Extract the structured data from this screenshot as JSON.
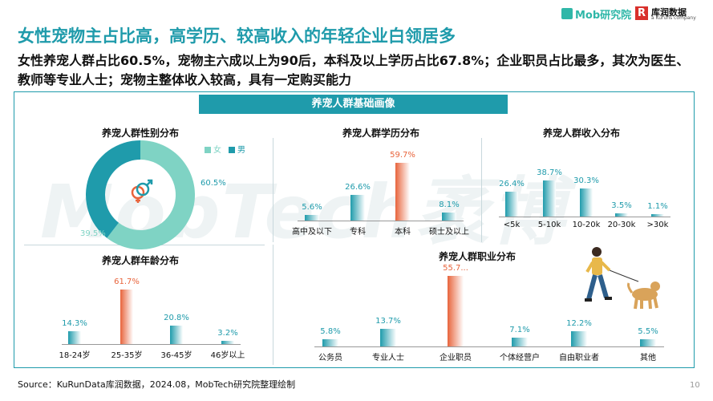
{
  "header": {
    "title": "女性宠物主占比高，高学历、较高收入的年轻企业白领居多",
    "subtitle": "女性养宠人群占比60.5%，宠物主六成以上为90后，本科及以上学历占比67.8%；企业职员占比最多，其次为医生、教师等专业人士；宠物主整体收入较高，具有一定购买能力",
    "logo_mob": "Mob研究院",
    "logo_r": "R",
    "logo_kurun_cn": "库润数据",
    "logo_kurun_en": "a Kuruns company"
  },
  "banner": "养宠人群基础画像",
  "watermark": "MobTech袤博",
  "source": "Source：KuRunData库润数据，2024.08，MobTech研究院整理绘制",
  "page_number": "10",
  "colors": {
    "teal": "#1f9bab",
    "orange": "#e8643c",
    "donut_female": "#7fd3c4",
    "donut_male": "#1f9bab"
  },
  "icons": {
    "gender": "gender-symbols-icon",
    "illustration": "person-walking-dog-icon"
  },
  "chart_data": [
    {
      "type": "pie",
      "title": "养宠人群性别分布",
      "legend": [
        "女",
        "男"
      ],
      "categories": [
        "女",
        "男"
      ],
      "values": [
        60.5,
        39.5
      ],
      "value_labels": [
        "60.5%",
        "39.5%"
      ]
    },
    {
      "type": "bar",
      "title": "养宠人群学历分布",
      "categories": [
        "高中及以下",
        "专科",
        "本科",
        "硕士及以上"
      ],
      "values": [
        5.6,
        26.6,
        59.7,
        8.1
      ],
      "value_labels": [
        "5.6%",
        "26.6%",
        "59.7%",
        "8.1%"
      ],
      "highlight_index": 2
    },
    {
      "type": "bar",
      "title": "养宠人群收入分布",
      "categories": [
        "<5k",
        "5-10k",
        "10-20k",
        "20-30k",
        ">30k"
      ],
      "values": [
        26.4,
        38.7,
        30.3,
        3.5,
        1.1
      ],
      "value_labels": [
        "26.4%",
        "38.7%",
        "30.3%",
        "3.5%",
        "1.1%"
      ],
      "highlight_index": -1
    },
    {
      "type": "bar",
      "title": "养宠人群年龄分布",
      "categories": [
        "18-24岁",
        "25-35岁",
        "36-45岁",
        "46岁以上"
      ],
      "values": [
        14.3,
        61.7,
        20.8,
        3.2
      ],
      "value_labels": [
        "14.3%",
        "61.7%",
        "20.8%",
        "3.2%"
      ],
      "highlight_index": 1
    },
    {
      "type": "bar",
      "title": "养宠人群职业分布",
      "categories": [
        "公务员",
        "专业人士",
        "企业职员",
        "个体经营户",
        "自由职业者",
        "其他"
      ],
      "values": [
        5.8,
        13.7,
        55.7,
        7.1,
        12.2,
        5.5
      ],
      "value_labels": [
        "5.8%",
        "13.7%",
        "55.7...",
        "7.1%",
        "12.2%",
        "5.5%"
      ],
      "highlight_index": 2
    }
  ]
}
